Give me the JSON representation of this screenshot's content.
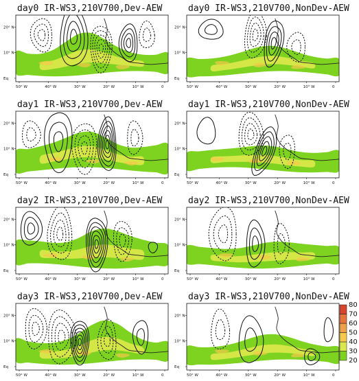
{
  "panels": [
    {
      "title": "day0  IR-WS3,210V700,Dev-AEW"
    },
    {
      "title": "day0  IR-WS3,210V700,NonDev-AEW"
    },
    {
      "title": "day1  IR-WS3,210V700,Dev-AEW"
    },
    {
      "title": "day1  IR-WS3,210V700,NonDev-AEW"
    },
    {
      "title": "day2  IR-WS3,210V700,Dev-AEW"
    },
    {
      "title": "day2  IR-WS3,210V700,NonDev-AEW"
    },
    {
      "title": "day3  IR-WS3,210V700,Dev-AEW"
    },
    {
      "title": "day3  IR-WS3,210V700,NonDev-AEW"
    }
  ],
  "lon_ticks": [
    "50° W",
    "40° W",
    "30° W",
    "20° W",
    "10° W",
    "0"
  ],
  "lat_ticks": [
    "Eq",
    "10° N",
    "20° N"
  ],
  "colorbar": {
    "levels": [
      "20",
      "30",
      "40",
      "50",
      "60",
      "70",
      "80"
    ],
    "colors": [
      "#7ed321",
      "#d9e84a",
      "#f5c94a",
      "#f0a048",
      "#e8743c",
      "#d8452e"
    ]
  }
}
